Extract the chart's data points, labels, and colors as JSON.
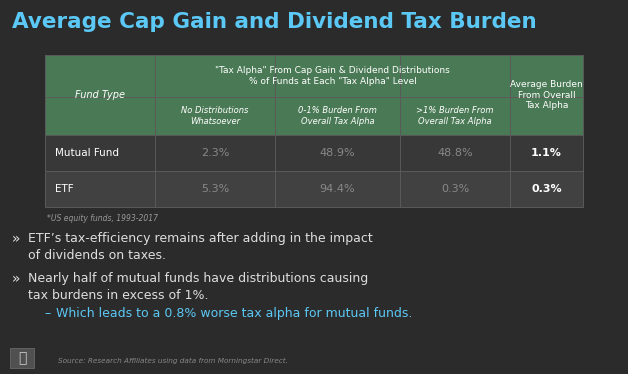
{
  "title": "Average Cap Gain and Dividend Tax Burden",
  "title_color": "#5BC8F5",
  "background_color": "#2B2B2B",
  "table_header_bg": "#4A7A55",
  "table_row1_bg": "#383838",
  "table_row2_bg": "#414141",
  "sep_color": "#5A5A5A",
  "col_headers_top": "\"Tax Alpha\" From Cap Gain & Dividend Distributions\n% of Funds at Each \"Tax Alpha\" Level",
  "col_fund_type": "Fund Type",
  "sub_headers": [
    "No Distributions\nWhatsoever",
    "0-1% Burden From\nOverall Tax Alpha",
    ">1% Burden From\nOverall Tax Alpha"
  ],
  "col_avg": "Average Burden\nFrom Overall\nTax Alpha",
  "rows": [
    {
      "fund_type": "Mutual Fund",
      "col1": "2.3%",
      "col2": "48.9%",
      "col3": "48.8%",
      "col4": "1.1%"
    },
    {
      "fund_type": "ETF",
      "col1": "5.3%",
      "col2": "94.4%",
      "col3": "0.3%",
      "col4": "0.3%"
    }
  ],
  "footnote": "*US equity funds, 1993-2017",
  "bullets": [
    "ETF’s tax-efficiency remains after adding in the impact\nof dividends on taxes.",
    "Nearly half of mutual funds have distributions causing\ntax burdens in excess of 1%."
  ],
  "sub_bullet": "Which leads to a 0.8% worse tax alpha for mutual funds.",
  "bullet_marker": "»",
  "sub_bullet_marker": "–",
  "bullet_color": "#DEDEDE",
  "sub_bullet_color": "#5BC8F5",
  "source_text": "Source: Research Affiliates using data from Morningstar Direct.",
  "header_text_color": "#FFFFFF",
  "data_dim_color": "#888888",
  "data_bright_color": "#FFFFFF",
  "footnote_color": "#999999",
  "source_color": "#888888"
}
